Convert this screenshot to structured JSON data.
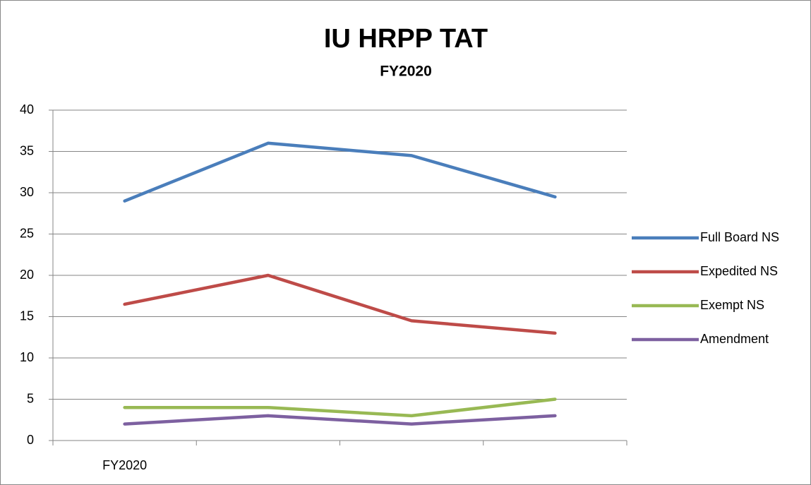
{
  "chart_data": {
    "type": "line",
    "title": "IU HRPP TAT",
    "subtitle": "FY2020",
    "categories": [
      "FY2020",
      null,
      null,
      null
    ],
    "series": [
      {
        "name": "Full Board NS",
        "color": "#4a7ebb",
        "values": [
          29,
          36,
          34.5,
          29.5
        ]
      },
      {
        "name": "Expedited NS",
        "color": "#be4b48",
        "values": [
          16.5,
          20,
          14.5,
          13
        ]
      },
      {
        "name": "Exempt NS",
        "color": "#98b954",
        "values": [
          4,
          4,
          3,
          5
        ]
      },
      {
        "name": "Amendment",
        "color": "#7d60a0",
        "values": [
          2,
          3,
          2,
          3
        ]
      }
    ],
    "ylim": [
      0,
      40
    ],
    "yticks": [
      0,
      5,
      10,
      15,
      20,
      25,
      30,
      35,
      40
    ],
    "grid": true,
    "legend": "right"
  }
}
